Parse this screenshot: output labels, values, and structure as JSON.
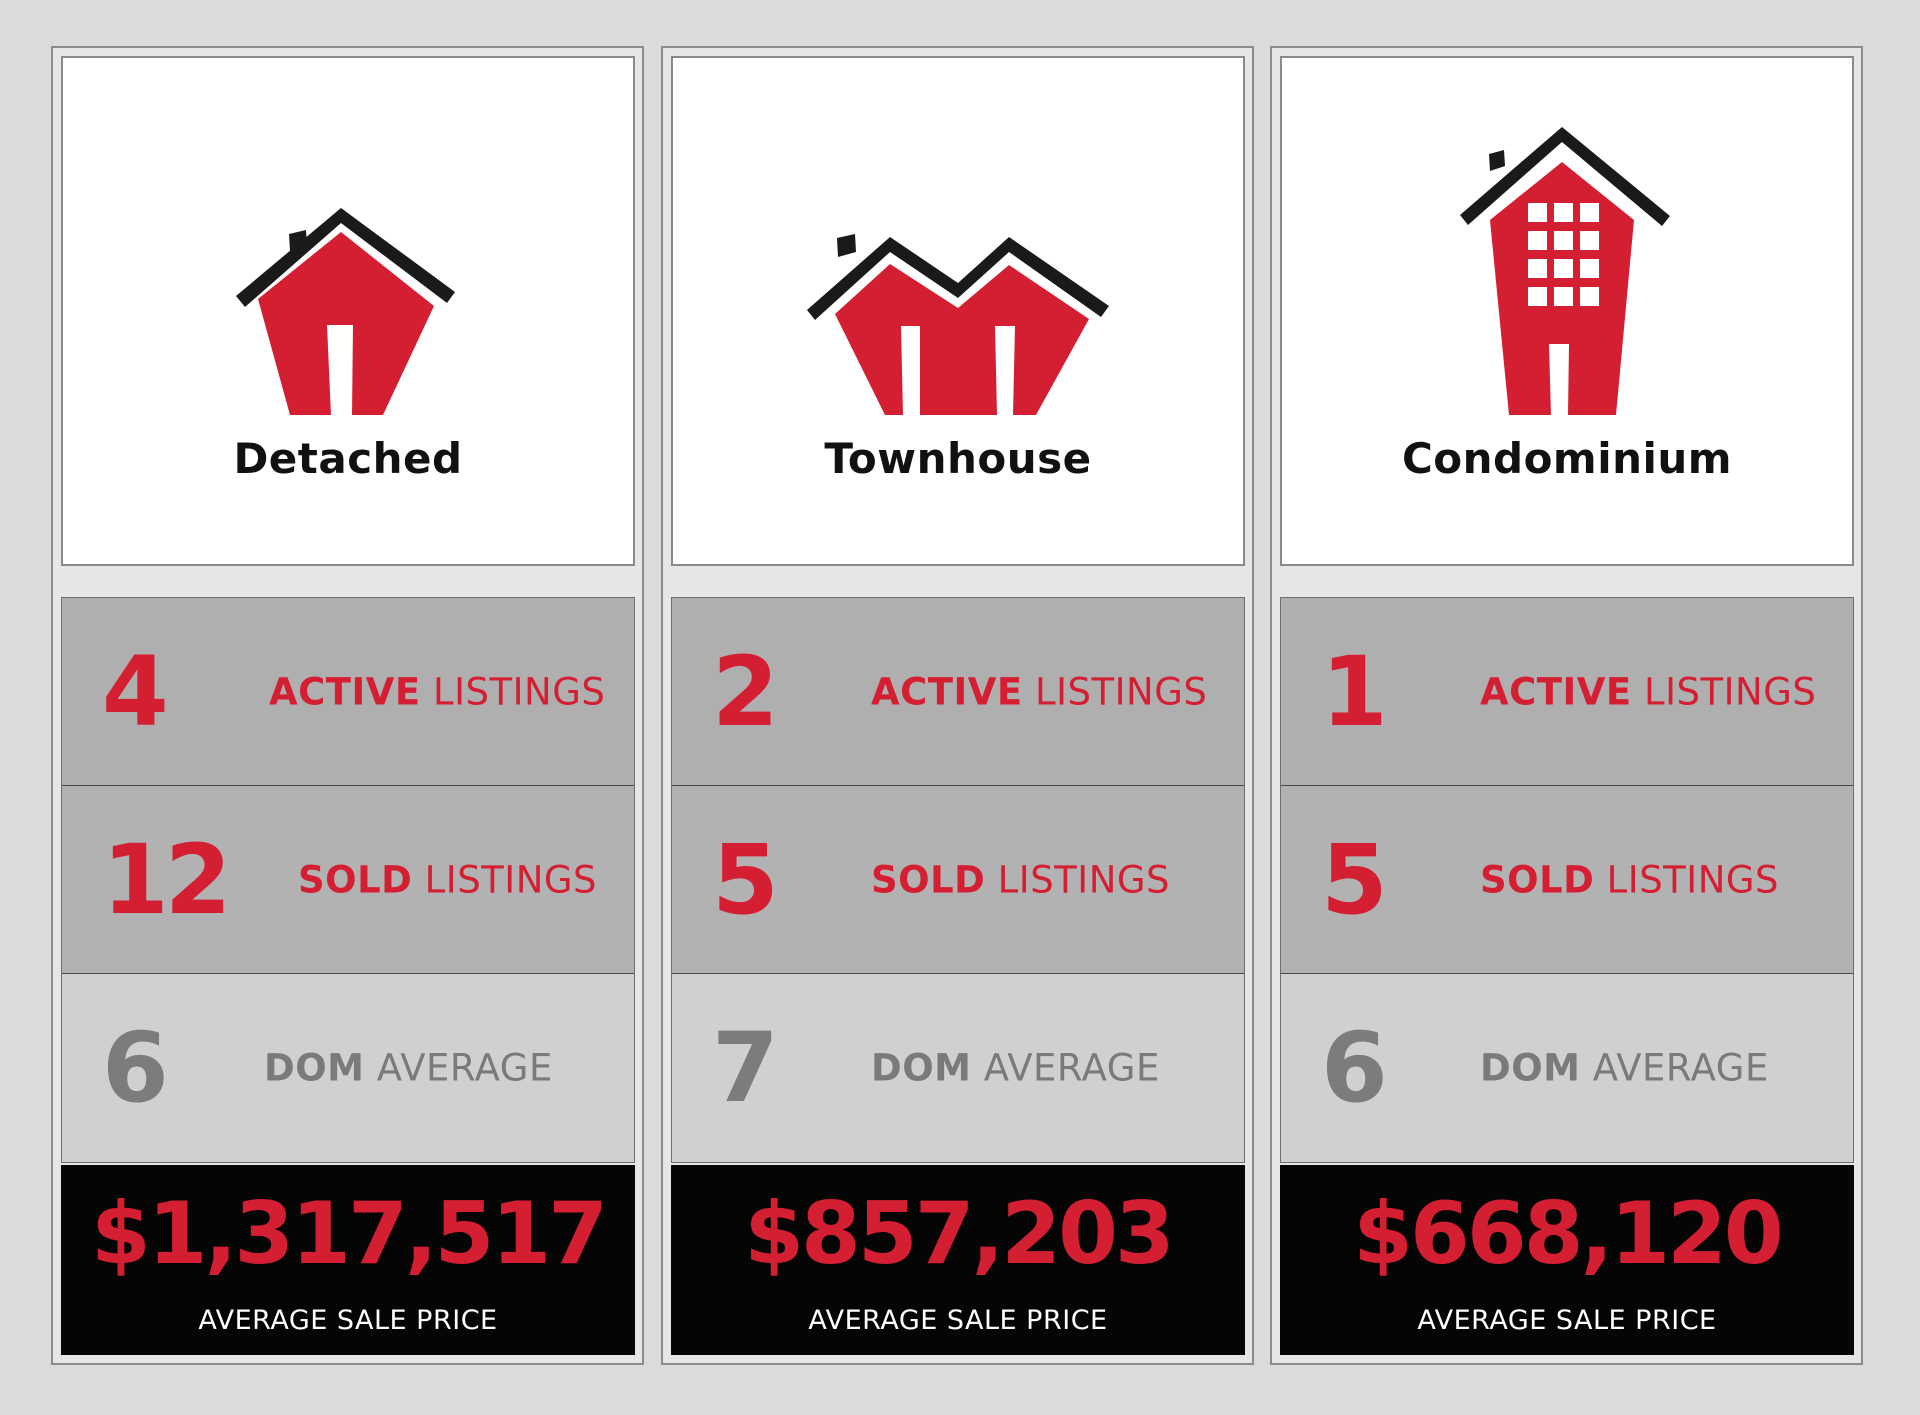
{
  "colors": {
    "accent": "#d41f33",
    "dark": "#050505",
    "muted": "#7c7c7c",
    "background": "#dcdbdc"
  },
  "columns": [
    {
      "type": "Detached",
      "icon": "detached-house-icon",
      "active": {
        "value": "4",
        "bold": "ACTIVE",
        "rest": "LISTINGS"
      },
      "sold": {
        "value": "12",
        "bold": "SOLD",
        "rest": "LISTINGS"
      },
      "dom": {
        "value": "6",
        "bold": "DOM",
        "rest": "AVERAGE"
      },
      "price": {
        "value": "$1,317,517",
        "label": "AVERAGE SALE PRICE"
      }
    },
    {
      "type": "Townhouse",
      "icon": "townhouse-icon",
      "active": {
        "value": "2",
        "bold": "ACTIVE",
        "rest": "LISTINGS"
      },
      "sold": {
        "value": "5",
        "bold": "SOLD",
        "rest": "LISTINGS"
      },
      "dom": {
        "value": "7",
        "bold": "DOM",
        "rest": "AVERAGE"
      },
      "price": {
        "value": "$857,203",
        "label": "AVERAGE SALE PRICE"
      }
    },
    {
      "type": "Condominium",
      "icon": "condominium-building-icon",
      "active": {
        "value": "1",
        "bold": "ACTIVE",
        "rest": "LISTINGS"
      },
      "sold": {
        "value": "5",
        "bold": "SOLD",
        "rest": "LISTINGS"
      },
      "dom": {
        "value": "6",
        "bold": "DOM",
        "rest": "AVERAGE"
      },
      "price": {
        "value": "$668,120",
        "label": "AVERAGE SALE PRICE"
      }
    }
  ]
}
